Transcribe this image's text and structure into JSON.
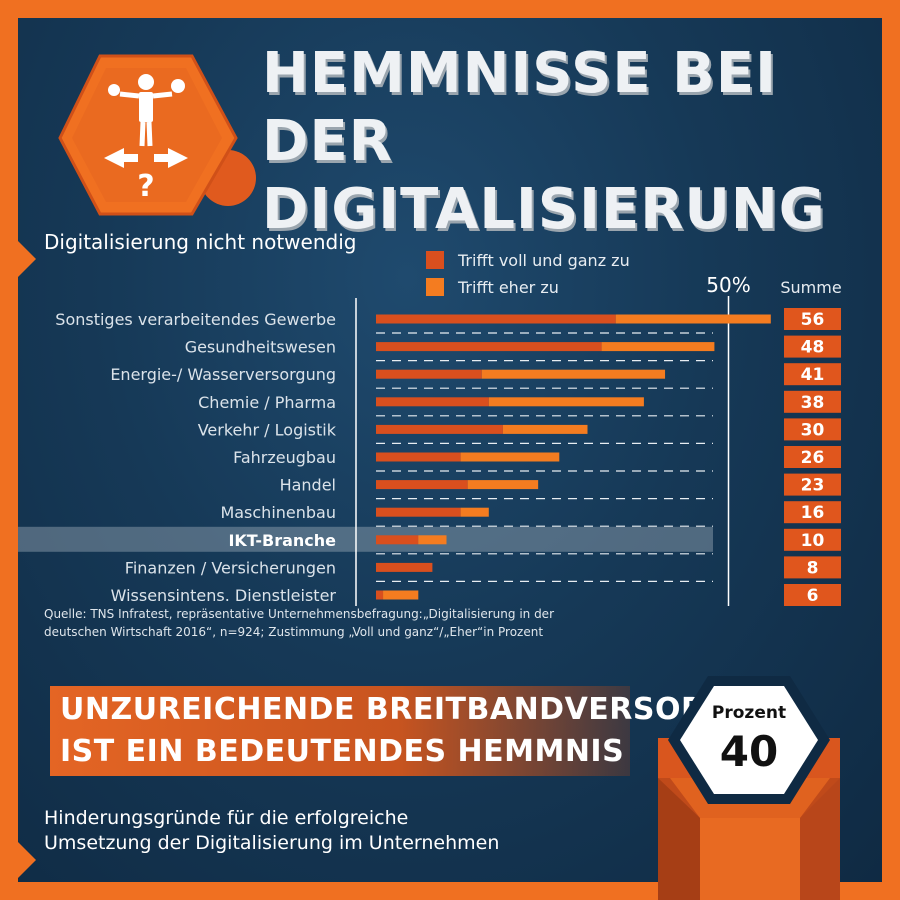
{
  "header": {
    "title_line1": "HEMMNISSE BEI",
    "title_line2": "DER DIGITALISIERUNG",
    "icon": "businessman-decision-icon"
  },
  "chart_data": {
    "type": "bar",
    "stacked": true,
    "orientation": "horizontal",
    "title": "Digitalisierung nicht notwendig",
    "categories": [
      "Sonstiges verarbeitendes Gewerbe",
      "Gesundheitswesen",
      "Energie-/ Wasserversorgung",
      "Chemie / Pharma",
      "Verkehr / Logistik",
      "Fahrzeugbau",
      "Handel",
      "Maschinenbau",
      "IKT-Branche",
      "Finanzen / Versicherungen",
      "Wissensintens. Dienstleister"
    ],
    "highlighted_category": "IKT-Branche",
    "series": [
      {
        "name": "Trifft voll und ganz zu",
        "color": "#d94f1e",
        "values": [
          34,
          32,
          15,
          16,
          18,
          12,
          13,
          12,
          6,
          8,
          1
        ]
      },
      {
        "name": "Trifft eher zu",
        "color": "#f47c20",
        "values": [
          22,
          16,
          26,
          22,
          12,
          14,
          10,
          4,
          4,
          0,
          5
        ]
      }
    ],
    "totals": [
      56,
      48,
      41,
      38,
      30,
      26,
      23,
      16,
      10,
      8,
      6
    ],
    "totals_label": "Summe",
    "reference_line": {
      "value": 50,
      "label": "50%"
    },
    "xlim": [
      0,
      56
    ]
  },
  "source": "Quelle: TNS Infratest, repräsentative Unternehmensbefragung:„Digitalisierung in der deutschen Wirtschaft 2016“, n=924; Zustimmung „Voll und ganz“/„Eher“in Prozent",
  "banner": {
    "line1": "UNZUREICHENDE BREITBANDVERSORGUNG",
    "line2": "IST EIN BEDEUTENDES HEMMNIS"
  },
  "badge": {
    "label": "Prozent",
    "value": "40"
  },
  "footer": {
    "line1": "Hinderungsgründe für die erfolgreiche",
    "line2": "Umsetzung der Digitalisierung im Unternehmen"
  },
  "colors": {
    "background": "#163957",
    "accent": "#f07021",
    "series_dark": "#d94f1e",
    "series_light": "#f47c20"
  }
}
